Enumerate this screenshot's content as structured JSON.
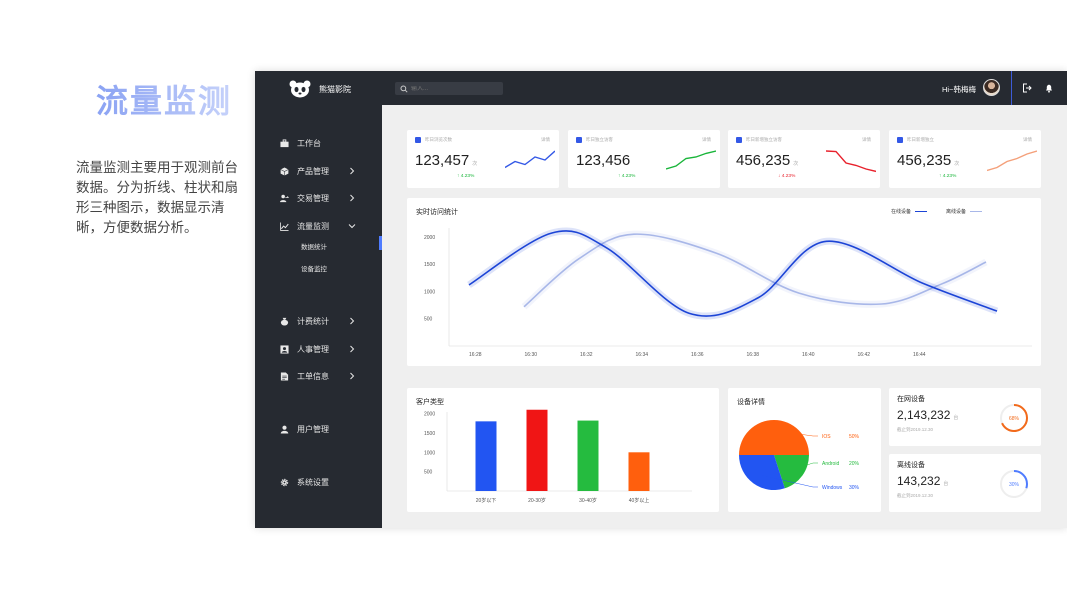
{
  "promo": {
    "title": "流量监测",
    "description": "流量监测主要用于观测前台数据。分为折线、柱状和扇形三种图示，数据显示清晰，方便数据分析。"
  },
  "app": {
    "logo_text": "熊猫影院",
    "search_placeholder": "输入...",
    "greeting": "Hi~韩梅梅",
    "accent_color": "#3358e6"
  },
  "sidebar": {
    "items": [
      {
        "label": "工作台",
        "icon": "briefcase-icon",
        "chevron": false
      },
      {
        "label": "产品管理",
        "icon": "cube-icon",
        "chevron": true
      },
      {
        "label": "交易管理",
        "icon": "user-trade-icon",
        "chevron": true
      },
      {
        "label": "流量监测",
        "icon": "chart-icon",
        "chevron": true,
        "expanded": true
      },
      {
        "label": "计费统计",
        "icon": "money-bag-icon",
        "chevron": true
      },
      {
        "label": "人事管理",
        "icon": "id-card-icon",
        "chevron": true
      },
      {
        "label": "工单信息",
        "icon": "document-icon",
        "chevron": true
      },
      {
        "label": "用户管理",
        "icon": "user-icon",
        "chevron": false
      },
      {
        "label": "系统设置",
        "icon": "gear-icon",
        "chevron": false
      }
    ],
    "subitems": [
      {
        "label": "数据统计",
        "active": true
      },
      {
        "label": "设备监控",
        "active": false
      }
    ]
  },
  "stats": [
    {
      "caption": "昨日浏览次数",
      "detail": "详情",
      "value": "123,457",
      "unit": "次",
      "change": "4.23%",
      "trend": "up",
      "color": "#3358e6",
      "spark": [
        0.25,
        0.45,
        0.35,
        0.6,
        0.5,
        0.8
      ]
    },
    {
      "caption": "昨日独立访客",
      "detail": "详情",
      "value": "123,456",
      "unit": "",
      "change": "4.23%",
      "trend": "up",
      "color": "#19b53a",
      "spark": [
        0.2,
        0.3,
        0.55,
        0.6,
        0.72,
        0.8
      ]
    },
    {
      "caption": "昨日新增独立访客",
      "detail": "详情",
      "value": "456,235",
      "unit": "次",
      "change": "4.23%",
      "trend": "down",
      "color": "#e8212c",
      "spark": [
        0.8,
        0.78,
        0.4,
        0.32,
        0.2,
        0.12
      ]
    },
    {
      "caption": "昨日新增独立",
      "detail": "详情",
      "value": "456,235",
      "unit": "次",
      "change": "4.23%",
      "trend": "up",
      "color": "#f4a07a",
      "spark": [
        0.15,
        0.25,
        0.45,
        0.55,
        0.7,
        0.8
      ]
    }
  ],
  "visit_chart_title": "实时访问统计",
  "device_detail_title": "设备详情",
  "online_devices": {
    "title": "在网设备",
    "value": "2,143,232",
    "unit": "台",
    "sub": "截止到2019.12.30",
    "gauge": "68%",
    "gauge_fraction": 0.68,
    "color": "#f26a1b"
  },
  "offline_devices": {
    "title": "离线设备",
    "value": "143,232",
    "unit": "台",
    "sub": "截止到2019.12.30",
    "gauge": "30%",
    "gauge_fraction": 0.3,
    "color": "#4f7cff"
  },
  "chart_data": [
    {
      "type": "line",
      "title": "实时访问统计",
      "x": [
        "16:28",
        "16:30",
        "16:32",
        "16:34",
        "16:36",
        "16:38",
        "16:40",
        "16:42",
        "16:44"
      ],
      "yticks": [
        2000,
        1500,
        1000,
        500
      ],
      "ylim": [
        0,
        2200
      ],
      "series": [
        {
          "name": "在线设备",
          "color": "#1c44d6",
          "points": [
            [
              16.28,
              1120
            ],
            [
              16.31,
              2070
            ],
            [
              16.33,
              1800
            ],
            [
              16.36,
              600
            ],
            [
              16.385,
              880
            ],
            [
              16.41,
              1920
            ],
            [
              16.445,
              1150
            ],
            [
              16.472,
              640
            ]
          ]
        },
        {
          "name": "离线设备",
          "color": "#a8b7e8",
          "points": [
            [
              16.3,
              720
            ],
            [
              16.32,
              1600
            ],
            [
              16.34,
              2050
            ],
            [
              16.37,
              1700
            ],
            [
              16.4,
              970
            ],
            [
              16.43,
              770
            ],
            [
              16.452,
              1140
            ],
            [
              16.468,
              1540
            ]
          ]
        }
      ],
      "legend_position": "top-right"
    },
    {
      "type": "bar",
      "title": "客户类型",
      "categories": [
        "20岁以下",
        "20-30岁",
        "30-40岁",
        "40岁以上"
      ],
      "values": [
        1800,
        2100,
        1820,
        1000
      ],
      "colors": [
        "#2255f2",
        "#f01515",
        "#25bb3f",
        "#ff5f0d"
      ],
      "yticks": [
        2000,
        1500,
        1000,
        500
      ],
      "ylim": [
        0,
        2300
      ]
    },
    {
      "type": "pie",
      "title": "设备详情",
      "slices": [
        {
          "name": "IOS",
          "value": 50,
          "label": "50%",
          "color": "#ff5f0d"
        },
        {
          "name": "Android",
          "value": 20,
          "label": "20%",
          "color": "#25bb3f"
        },
        {
          "name": "Windows",
          "value": 30,
          "label": "30%",
          "color": "#2255f2"
        }
      ]
    }
  ]
}
